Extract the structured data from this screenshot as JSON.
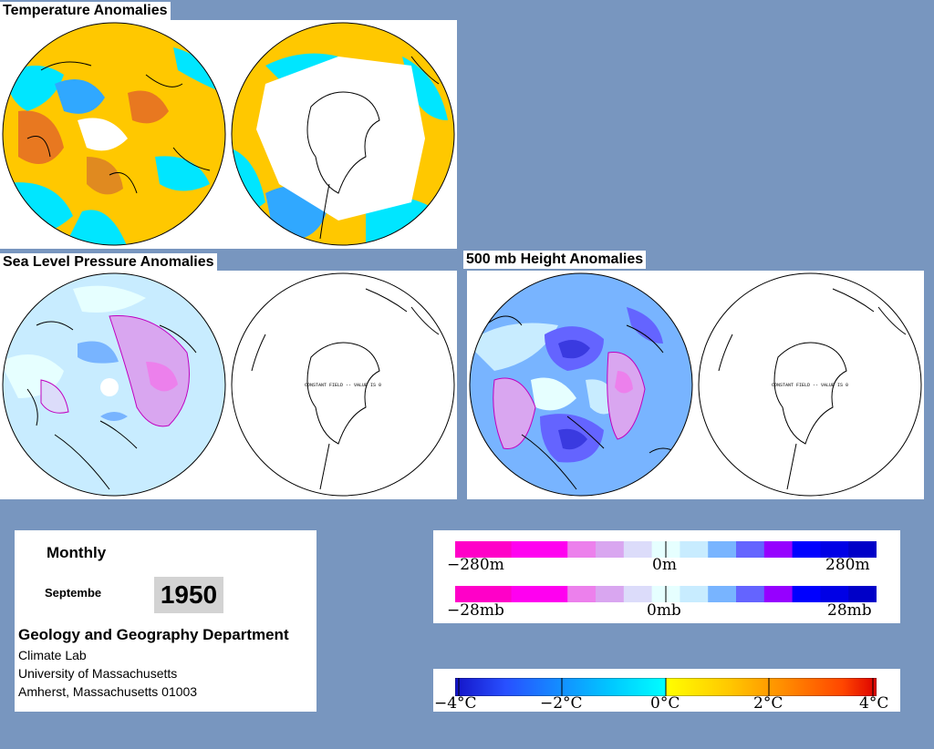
{
  "titles": {
    "temperature": "Temperature Anomalies",
    "slp": "Sea Level Pressure Anomalies",
    "height": "500 mb Height Anomalies"
  },
  "constant_field_label": "CONSTANT FIELD -- VALUE IS 0",
  "info": {
    "period": "Monthly",
    "month": "Septembe",
    "year": "1950",
    "department": "Geology and Geography Department",
    "lines": [
      "Climate Lab",
      "University of Massachusetts",
      "Amherst, Massachusetts 01003"
    ]
  },
  "height_scale": {
    "colors": [
      "#ff00c8",
      "#ff00c8",
      "#ff00f0",
      "#ff00f0",
      "#ec80ec",
      "#d9a6f0",
      "#dcdcfa",
      "#e6ffff",
      "#c8ecff",
      "#78b4ff",
      "#6464ff",
      "#9600ff",
      "#0000ff",
      "#0000e6",
      "#0000c8"
    ],
    "labels": {
      "min": "−280m",
      "mid": "0m",
      "max": "280m"
    }
  },
  "pressure_scale": {
    "colors": [
      "#ff00c8",
      "#ff00c8",
      "#ff00f0",
      "#ff00f0",
      "#ec80ec",
      "#d9a6f0",
      "#dcdcfa",
      "#e6ffff",
      "#c8ecff",
      "#78b4ff",
      "#6464ff",
      "#9600ff",
      "#0000ff",
      "#0000e6",
      "#0000c8"
    ],
    "labels": {
      "min": "−28mb",
      "mid": "0mb",
      "max": "28mb"
    }
  },
  "temperature_scale": {
    "stops": [
      "#1414c8",
      "#2850ff",
      "#00c8ff",
      "#00ffff",
      "#ffff00",
      "#ffc800",
      "#ff8c00",
      "#ff4600",
      "#dc0000"
    ],
    "labels": [
      "−4°C",
      "−2°C",
      "0°C",
      "2°C",
      "4°C"
    ]
  }
}
